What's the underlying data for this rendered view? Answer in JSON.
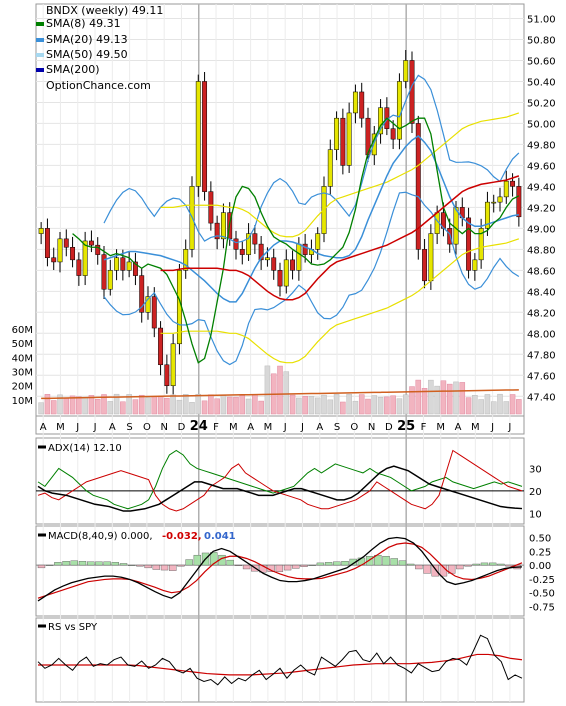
{
  "chart_data": [
    {
      "type": "candlestick",
      "panel": "price",
      "title": "BNDX (weekly) 49.11",
      "watermark": "OptionChance.com",
      "legend_placement": "top-left",
      "legend": [
        {
          "label": "SMA(8) 49.31",
          "color": "#008000"
        },
        {
          "label": "SMA(20) 49.13",
          "color": "#3a8fd8"
        },
        {
          "label": "SMA(50) 49.50",
          "color": "#a6d8f0"
        },
        {
          "label": "SMA(200)",
          "color": "#0000aa"
        }
      ],
      "ylim": [
        47.25,
        51.1
      ],
      "y_ticks": [
        "51.00",
        "50.80",
        "50.60",
        "50.40",
        "50.20",
        "50.00",
        "49.80",
        "49.60",
        "49.40",
        "49.20",
        "49.00",
        "48.80",
        "48.60",
        "48.40",
        "48.20",
        "48.00",
        "47.80",
        "47.60",
        "47.40"
      ],
      "x_labels": [
        "A",
        "M",
        "J",
        "J",
        "A",
        "S",
        "O",
        "N",
        "D",
        "24",
        "F",
        "M",
        "A",
        "M",
        "J",
        "J",
        "A",
        "S",
        "O",
        "N",
        "D",
        "25",
        "F",
        "M",
        "A",
        "M",
        "J",
        "J"
      ],
      "close": [
        49.0,
        48.72,
        48.68,
        48.9,
        48.82,
        48.7,
        48.55,
        48.88,
        48.84,
        48.75,
        48.42,
        48.6,
        48.72,
        48.6,
        48.68,
        48.55,
        48.2,
        48.35,
        48.05,
        47.7,
        47.5,
        47.9,
        48.6,
        48.8,
        49.4,
        50.4,
        49.35,
        49.05,
        48.9,
        49.15,
        48.9,
        48.8,
        48.75,
        48.95,
        48.85,
        48.7,
        48.72,
        48.6,
        48.45,
        48.7,
        48.6,
        48.85,
        48.75,
        48.8,
        48.95,
        49.4,
        49.75,
        50.05,
        49.6,
        50.1,
        50.3,
        50.05,
        49.7,
        49.9,
        50.15,
        49.95,
        49.85,
        50.4,
        50.6,
        50.0,
        48.8,
        48.5,
        48.95,
        49.15,
        49.0,
        48.85,
        49.2,
        49.1,
        48.6,
        48.7,
        49.0,
        49.25,
        49.25,
        49.3,
        49.45,
        49.4,
        49.11
      ],
      "sma8": [
        48.95,
        48.9,
        48.84,
        48.82,
        48.82,
        48.78,
        48.74,
        48.76,
        48.74,
        48.72,
        48.66,
        48.62,
        48.66,
        48.64,
        48.62,
        48.56,
        48.44,
        48.32,
        48.12,
        47.9,
        47.72,
        47.76,
        47.98,
        48.3,
        48.62,
        49.05,
        49.3,
        49.4,
        49.38,
        49.3,
        49.15,
        49.02,
        48.92,
        48.88,
        48.85,
        48.8,
        48.76,
        48.72,
        48.66,
        48.65,
        48.66,
        48.7,
        48.76,
        48.82,
        48.96,
        49.18,
        49.48,
        49.72,
        49.85,
        49.98,
        50.05,
        50.0,
        49.95,
        49.98,
        50.02,
        50.05,
        50.05,
        49.9,
        49.55,
        49.2,
        49.05,
        49.0,
        48.95,
        49.0,
        48.95,
        48.95,
        48.98,
        49.05,
        49.1,
        49.2,
        49.28,
        49.31
      ],
      "sma20": [
        48.7,
        48.72,
        48.74,
        48.76,
        48.78,
        48.78,
        48.77,
        48.76,
        48.75,
        48.74,
        48.72,
        48.7,
        48.68,
        48.65,
        48.6,
        48.55,
        48.5,
        48.44,
        48.38,
        48.33,
        48.3,
        48.3,
        48.38,
        48.5,
        48.62,
        48.72,
        48.78,
        48.84,
        48.88,
        48.88,
        48.87,
        48.85,
        48.82,
        48.8,
        48.76,
        48.74,
        48.73,
        48.72,
        48.72,
        48.74,
        48.8,
        48.92,
        49.08,
        49.22,
        49.36,
        49.5,
        49.62,
        49.7,
        49.78,
        49.84,
        49.88,
        49.82,
        49.74,
        49.6,
        49.45,
        49.3,
        49.18,
        49.1,
        49.05,
        49.02,
        49.02,
        49.04,
        49.06,
        49.08,
        49.1,
        49.12,
        49.13
      ],
      "sma50": [
        48.6,
        48.6,
        48.6,
        48.61,
        48.62,
        48.62,
        48.62,
        48.62,
        48.62,
        48.62,
        48.61,
        48.6,
        48.6,
        48.58,
        48.55,
        48.5,
        48.45,
        48.4,
        48.36,
        48.33,
        48.32,
        48.32,
        48.34,
        48.38,
        48.45,
        48.52,
        48.58,
        48.64,
        48.68,
        48.7,
        48.72,
        48.74,
        48.76,
        48.78,
        48.8,
        48.82,
        48.84,
        48.87,
        48.9,
        48.93,
        48.96,
        49.0,
        49.05,
        49.1,
        49.15,
        49.2,
        49.25,
        49.3,
        49.35,
        49.38,
        49.4,
        49.42,
        49.43,
        49.44,
        49.45,
        49.46,
        49.48,
        49.5
      ],
      "volume_axis_ticks": [
        "60M",
        "50M",
        "40M",
        "30M",
        "20M",
        "10M"
      ],
      "volume_ylim": [
        0,
        65
      ]
    },
    {
      "type": "line",
      "panel": "adx",
      "title": "ADX(14) 12.10",
      "y_ticks": [
        "30",
        "20",
        "10"
      ],
      "ylim": [
        7,
        40
      ],
      "adx": [
        22,
        20,
        19,
        18.5,
        18,
        17,
        16,
        15,
        14,
        13.5,
        13,
        12,
        11,
        11,
        11.5,
        12,
        13,
        14,
        16,
        18,
        20,
        22,
        24,
        24,
        23,
        22,
        21,
        21,
        21,
        20,
        19,
        18,
        18,
        18,
        19,
        20,
        21,
        21,
        20,
        19,
        18,
        17,
        16,
        16,
        17,
        19,
        22,
        25,
        28,
        30,
        31,
        30,
        29,
        27,
        25,
        23,
        22,
        21,
        20,
        19,
        18,
        17,
        16,
        15,
        14,
        13,
        12.6,
        12.3,
        12.1
      ],
      "plus_di": [
        24,
        22,
        26,
        30,
        28,
        26,
        23,
        20,
        18,
        17,
        16,
        14,
        13,
        12,
        13,
        14,
        16,
        22,
        30,
        36,
        38,
        36,
        32,
        30,
        29,
        28,
        27,
        26,
        25,
        24,
        23,
        22,
        21,
        20,
        19,
        20,
        21,
        22,
        25,
        28,
        30,
        28,
        30,
        32,
        31,
        30,
        29,
        28,
        30,
        28,
        27,
        26,
        24,
        22,
        20,
        21,
        22,
        24,
        25,
        26,
        24,
        23,
        22,
        21,
        22,
        23,
        24,
        23,
        24,
        23,
        22
      ],
      "minus_di": [
        18,
        19,
        17,
        16,
        18,
        20,
        22,
        24,
        25,
        26,
        27,
        28,
        29,
        28,
        27,
        26,
        25,
        18,
        14,
        12,
        11,
        12,
        14,
        16,
        18,
        22,
        24,
        26,
        30,
        32,
        28,
        26,
        24,
        22,
        20,
        19,
        18,
        17,
        16,
        14,
        13,
        12,
        12,
        13,
        14,
        15,
        16,
        18,
        20,
        24,
        22,
        20,
        18,
        16,
        14,
        13,
        12,
        14,
        18,
        28,
        38,
        36,
        34,
        32,
        30,
        28,
        26,
        24,
        22,
        21,
        20
      ]
    },
    {
      "type": "bar+line",
      "panel": "macd",
      "title": "MACD(8,40,9) 0.000,",
      "macd_label": "-0.032,",
      "signal_label": "0.041",
      "y_ticks": [
        "0.50",
        "0.25",
        "0.00",
        "-0.25",
        "-0.50",
        "-0.75"
      ],
      "ylim": [
        -0.85,
        0.6
      ],
      "macd": [
        -0.65,
        -0.55,
        -0.45,
        -0.38,
        -0.32,
        -0.28,
        -0.24,
        -0.22,
        -0.2,
        -0.2,
        -0.22,
        -0.26,
        -0.32,
        -0.4,
        -0.48,
        -0.55,
        -0.6,
        -0.5,
        -0.3,
        -0.1,
        0.1,
        0.25,
        0.3,
        0.25,
        0.15,
        0.05,
        -0.05,
        -0.15,
        -0.22,
        -0.28,
        -0.3,
        -0.3,
        -0.28,
        -0.25,
        -0.2,
        -0.15,
        -0.1,
        -0.05,
        0.05,
        0.15,
        0.28,
        0.4,
        0.48,
        0.5,
        0.48,
        0.4,
        0.25,
        0.05,
        -0.15,
        -0.3,
        -0.35,
        -0.32,
        -0.28,
        -0.22,
        -0.16,
        -0.1,
        -0.06,
        -0.04,
        -0.032
      ],
      "signal": [
        -0.6,
        -0.55,
        -0.5,
        -0.45,
        -0.4,
        -0.35,
        -0.3,
        -0.28,
        -0.26,
        -0.25,
        -0.25,
        -0.26,
        -0.3,
        -0.35,
        -0.4,
        -0.46,
        -0.5,
        -0.48,
        -0.4,
        -0.28,
        -0.12,
        0.02,
        0.12,
        0.16,
        0.16,
        0.12,
        0.06,
        -0.02,
        -0.1,
        -0.16,
        -0.21,
        -0.24,
        -0.25,
        -0.25,
        -0.24,
        -0.2,
        -0.16,
        -0.12,
        -0.06,
        0.02,
        0.12,
        0.22,
        0.32,
        0.38,
        0.4,
        0.38,
        0.32,
        0.2,
        0.05,
        -0.1,
        -0.2,
        -0.25,
        -0.26,
        -0.24,
        -0.2,
        -0.14,
        -0.08,
        -0.02,
        0.041
      ],
      "histogram": [
        -0.05,
        0,
        0.05,
        0.07,
        0.08,
        0.07,
        0.06,
        0.06,
        0.06,
        0.05,
        0.03,
        0,
        -0.02,
        -0.05,
        -0.08,
        -0.09,
        -0.1,
        -0.02,
        0.1,
        0.18,
        0.22,
        0.23,
        0.18,
        0.09,
        -0.01,
        -0.07,
        -0.11,
        -0.13,
        -0.12,
        -0.12,
        -0.09,
        -0.06,
        -0.03,
        0,
        0.04,
        0.05,
        0.06,
        0.07,
        0.11,
        0.13,
        0.16,
        0.18,
        0.16,
        0.12,
        0.08,
        0.02,
        -0.07,
        -0.15,
        -0.2,
        -0.2,
        -0.15,
        -0.07,
        -0.02,
        0.02,
        0.04,
        0.04,
        0.02,
        -0.02,
        -0.07
      ]
    },
    {
      "type": "line",
      "panel": "rs",
      "title": "RS vs SPY",
      "rs": [
        0.55,
        0.45,
        0.5,
        0.6,
        0.5,
        0.42,
        0.55,
        0.62,
        0.48,
        0.52,
        0.5,
        0.58,
        0.62,
        0.5,
        0.48,
        0.56,
        0.45,
        0.5,
        0.6,
        0.55,
        0.42,
        0.38,
        0.45,
        0.3,
        0.25,
        0.28,
        0.2,
        0.32,
        0.22,
        0.3,
        0.26,
        0.35,
        0.42,
        0.28,
        0.36,
        0.45,
        0.3,
        0.42,
        0.5,
        0.4,
        0.35,
        0.62,
        0.55,
        0.48,
        0.58,
        0.7,
        0.72,
        0.58,
        0.55,
        0.68,
        0.52,
        0.62,
        0.5,
        0.45,
        0.38,
        0.52,
        0.46,
        0.4,
        0.42,
        0.55,
        0.6,
        0.58,
        0.5,
        0.72,
        0.95,
        0.9,
        0.65,
        0.55,
        0.28,
        0.35,
        0.3
      ],
      "rs_avg": [
        0.5,
        0.5,
        0.5,
        0.5,
        0.5,
        0.5,
        0.5,
        0.5,
        0.5,
        0.49,
        0.47,
        0.45,
        0.43,
        0.41,
        0.39,
        0.37,
        0.36,
        0.35,
        0.35,
        0.35,
        0.36,
        0.37,
        0.38,
        0.4,
        0.42,
        0.44,
        0.46,
        0.48,
        0.5,
        0.51,
        0.52,
        0.52,
        0.52,
        0.52,
        0.53,
        0.54,
        0.56,
        0.58,
        0.62,
        0.66,
        0.66,
        0.64,
        0.6,
        0.58
      ]
    }
  ]
}
